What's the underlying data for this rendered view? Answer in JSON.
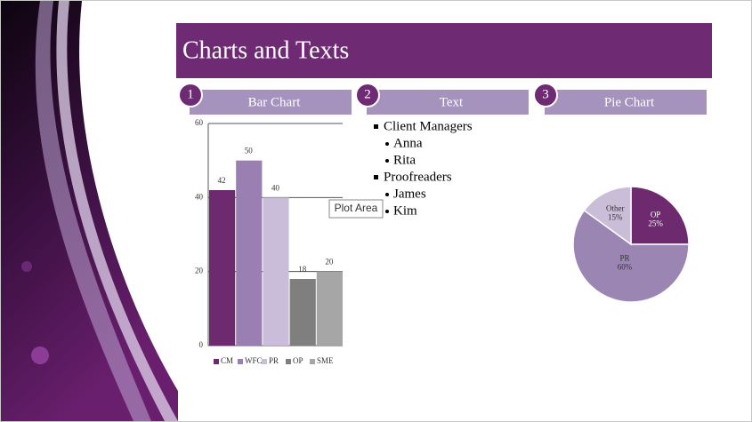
{
  "title": "Charts and Texts",
  "sections": [
    {
      "number": "1",
      "label": "Bar Chart"
    },
    {
      "number": "2",
      "label": "Text"
    },
    {
      "number": "3",
      "label": "Pie Chart"
    }
  ],
  "text_list": [
    {
      "text": "Client Managers",
      "items": [
        "Anna",
        "Rita"
      ]
    },
    {
      "text": "Proofreaders",
      "items": [
        "James",
        "Kim"
      ]
    }
  ],
  "tooltip": "Plot Area",
  "chart_data": [
    {
      "type": "bar",
      "categories": [
        "CM",
        "WFC",
        "PR",
        "OP",
        "SME"
      ],
      "values": [
        42,
        50,
        40,
        18,
        20
      ],
      "colors": [
        "#6e2a6e",
        "#9a80b2",
        "#c9bdd9",
        "#7f7f7f",
        "#a6a6a6"
      ],
      "ylim": [
        0,
        60
      ],
      "yticks": [
        0,
        20,
        40,
        60
      ],
      "grid": true
    },
    {
      "type": "pie",
      "categories": [
        "OP",
        "PR",
        "Other"
      ],
      "values": [
        25,
        60,
        15
      ],
      "value_labels": [
        "25%",
        "60%",
        "15%"
      ],
      "colors": [
        "#6e2a6e",
        "#9b86b3",
        "#c9bdd8"
      ]
    }
  ]
}
